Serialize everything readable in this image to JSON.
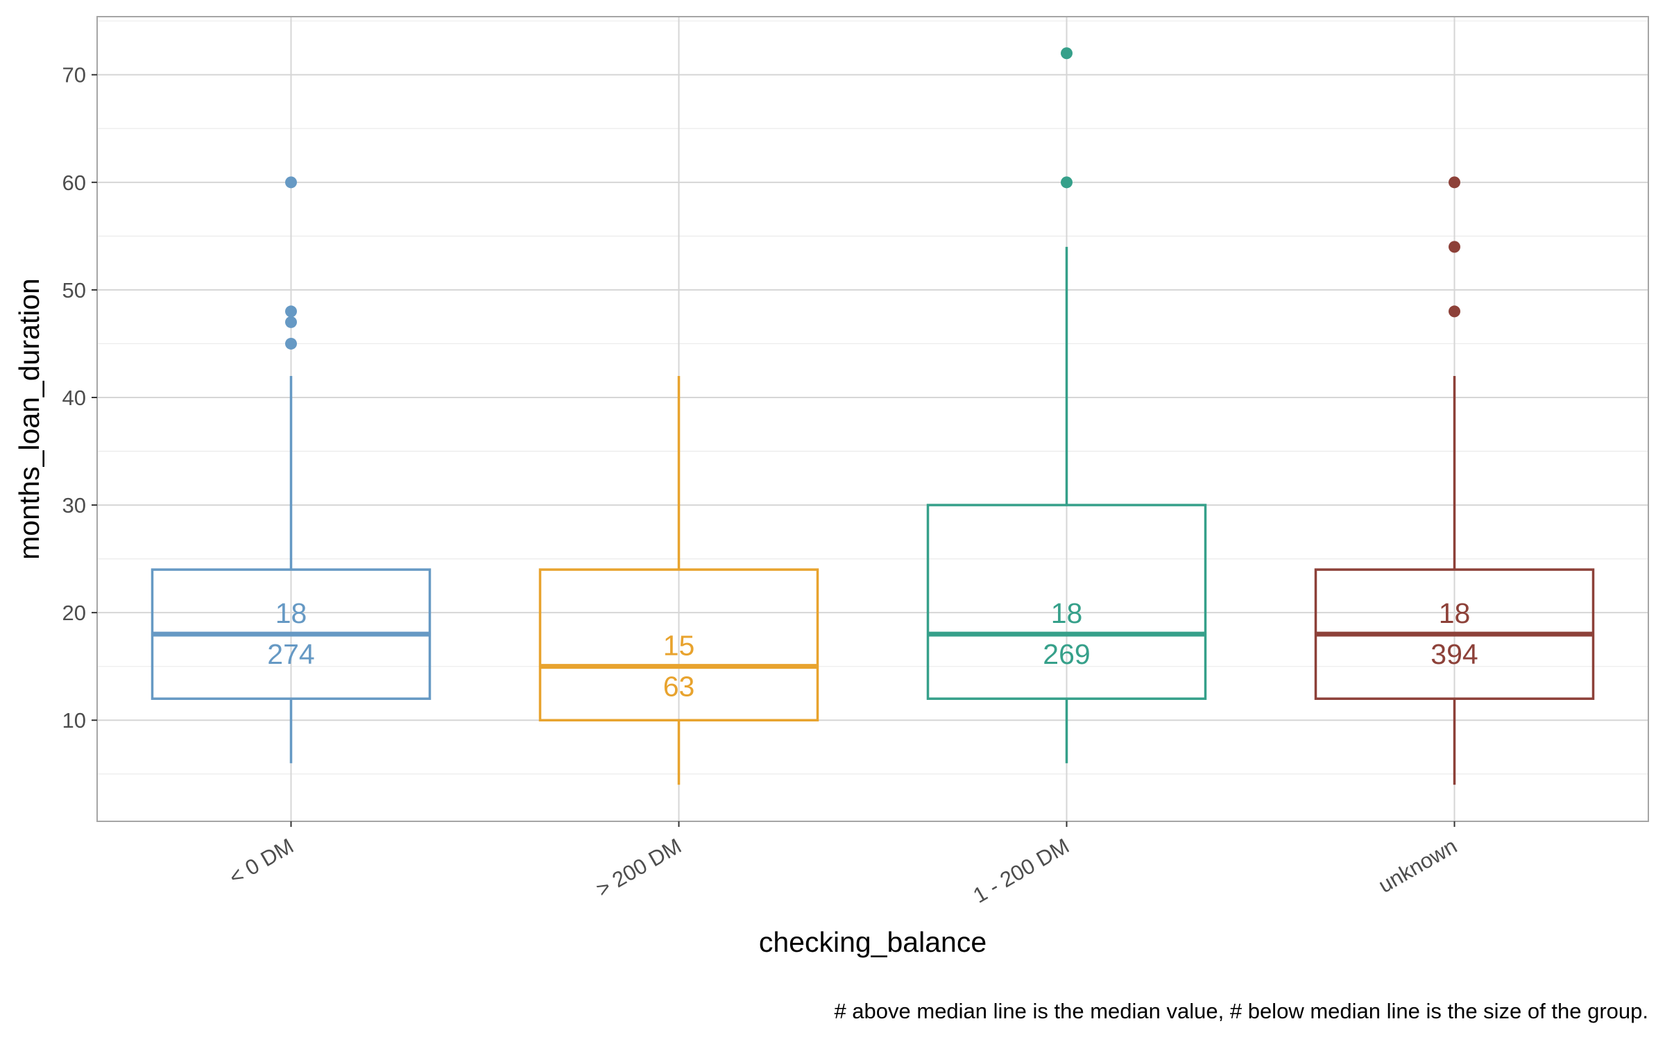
{
  "chart_data": {
    "type": "boxplot",
    "xlabel": "checking_balance",
    "ylabel": "months_loan_duration",
    "caption": "# above median line is the median value, # below median line is the size of the group.",
    "ylim": [
      0.6,
      75.4
    ],
    "y_ticks": [
      "10",
      "20",
      "30",
      "40",
      "50",
      "60",
      "70"
    ],
    "grid": true,
    "legend": "none",
    "categories": [
      "< 0 DM",
      "> 200 DM",
      "1 - 200 DM",
      "unknown"
    ],
    "groups": [
      {
        "category": "< 0 DM",
        "color": "#6699c4",
        "min": 6,
        "q1": 12,
        "median": 18,
        "q3": 24,
        "max": 42,
        "outliers": [
          45,
          47,
          48,
          60
        ],
        "n": 274,
        "median_label": "18",
        "n_label": "274"
      },
      {
        "category": "> 200 DM",
        "color": "#e8a32e",
        "min": 4,
        "q1": 10,
        "median": 15,
        "q3": 24,
        "max": 42,
        "outliers": [],
        "n": 63,
        "median_label": "15",
        "n_label": "63"
      },
      {
        "category": "1 - 200 DM",
        "color": "#36a08a",
        "min": 6,
        "q1": 12,
        "median": 18,
        "q3": 30,
        "max": 54,
        "outliers": [
          60,
          72
        ],
        "n": 269,
        "median_label": "18",
        "n_label": "269"
      },
      {
        "category": "unknown",
        "color": "#8d4139",
        "min": 4,
        "q1": 12,
        "median": 18,
        "q3": 24,
        "max": 42,
        "outliers": [
          48,
          54,
          60
        ],
        "n": 394,
        "median_label": "18",
        "n_label": "394"
      }
    ]
  }
}
